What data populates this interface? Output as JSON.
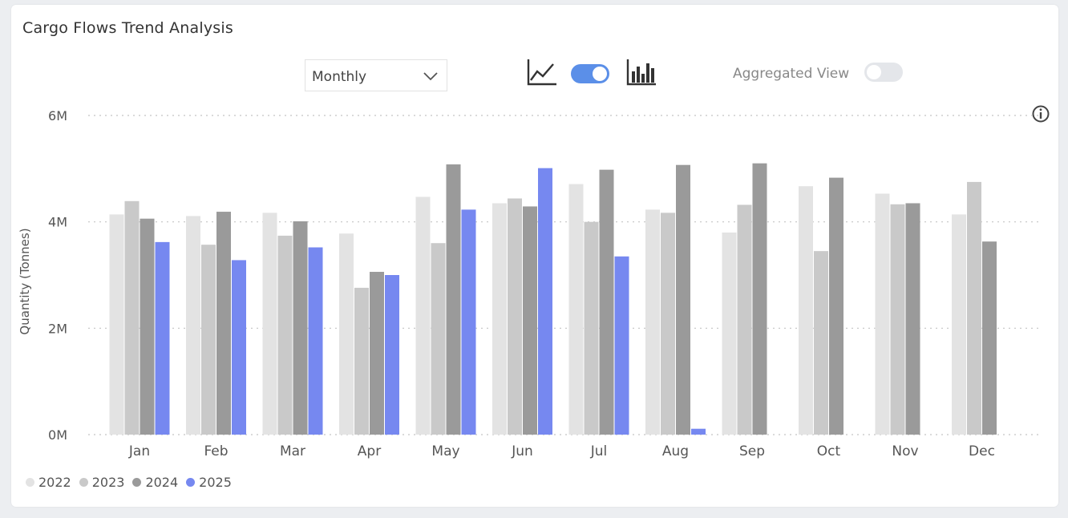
{
  "card": {
    "title": "Cargo Flows Trend Analysis"
  },
  "controls": {
    "period_selected": "Monthly",
    "aggregated_view_label": "Aggregated View",
    "chart_toggle_on": true,
    "aggregated_toggle_on": false
  },
  "colors": {
    "2022": "#e3e3e3",
    "2023": "#c9c9c9",
    "2024": "#9a9a9a",
    "2025": "#7688f0",
    "toggle_on": "#5b8fe8",
    "toggle_off": "#e4e6ea"
  },
  "chart_data": {
    "type": "bar",
    "title": "",
    "xlabel": "",
    "ylabel": "Quantity (Tonnes)",
    "ylim": [
      0,
      6000000
    ],
    "yticks": [
      0,
      2000000,
      4000000,
      6000000
    ],
    "ytick_labels": [
      "0M",
      "2M",
      "4M",
      "6M"
    ],
    "grid": true,
    "legend_position": "bottom-left",
    "categories": [
      "Jan",
      "Feb",
      "Mar",
      "Apr",
      "May",
      "Jun",
      "Jul",
      "Aug",
      "Sep",
      "Oct",
      "Nov",
      "Dec"
    ],
    "series": [
      {
        "name": "2022",
        "values": [
          4140000,
          4110000,
          4170000,
          3780000,
          4470000,
          4350000,
          4710000,
          4230000,
          3800000,
          4670000,
          4530000,
          4140000
        ]
      },
      {
        "name": "2023",
        "values": [
          4390000,
          3570000,
          3740000,
          2760000,
          3600000,
          4440000,
          4000000,
          4170000,
          4320000,
          3450000,
          4330000,
          4750000
        ]
      },
      {
        "name": "2024",
        "values": [
          4060000,
          4190000,
          4010000,
          3060000,
          5080000,
          4290000,
          4980000,
          5070000,
          5100000,
          4830000,
          4350000,
          3630000
        ]
      },
      {
        "name": "2025",
        "values": [
          3620000,
          3280000,
          3520000,
          3000000,
          4230000,
          5010000,
          3350000,
          110000,
          null,
          null,
          null,
          null
        ]
      }
    ]
  }
}
